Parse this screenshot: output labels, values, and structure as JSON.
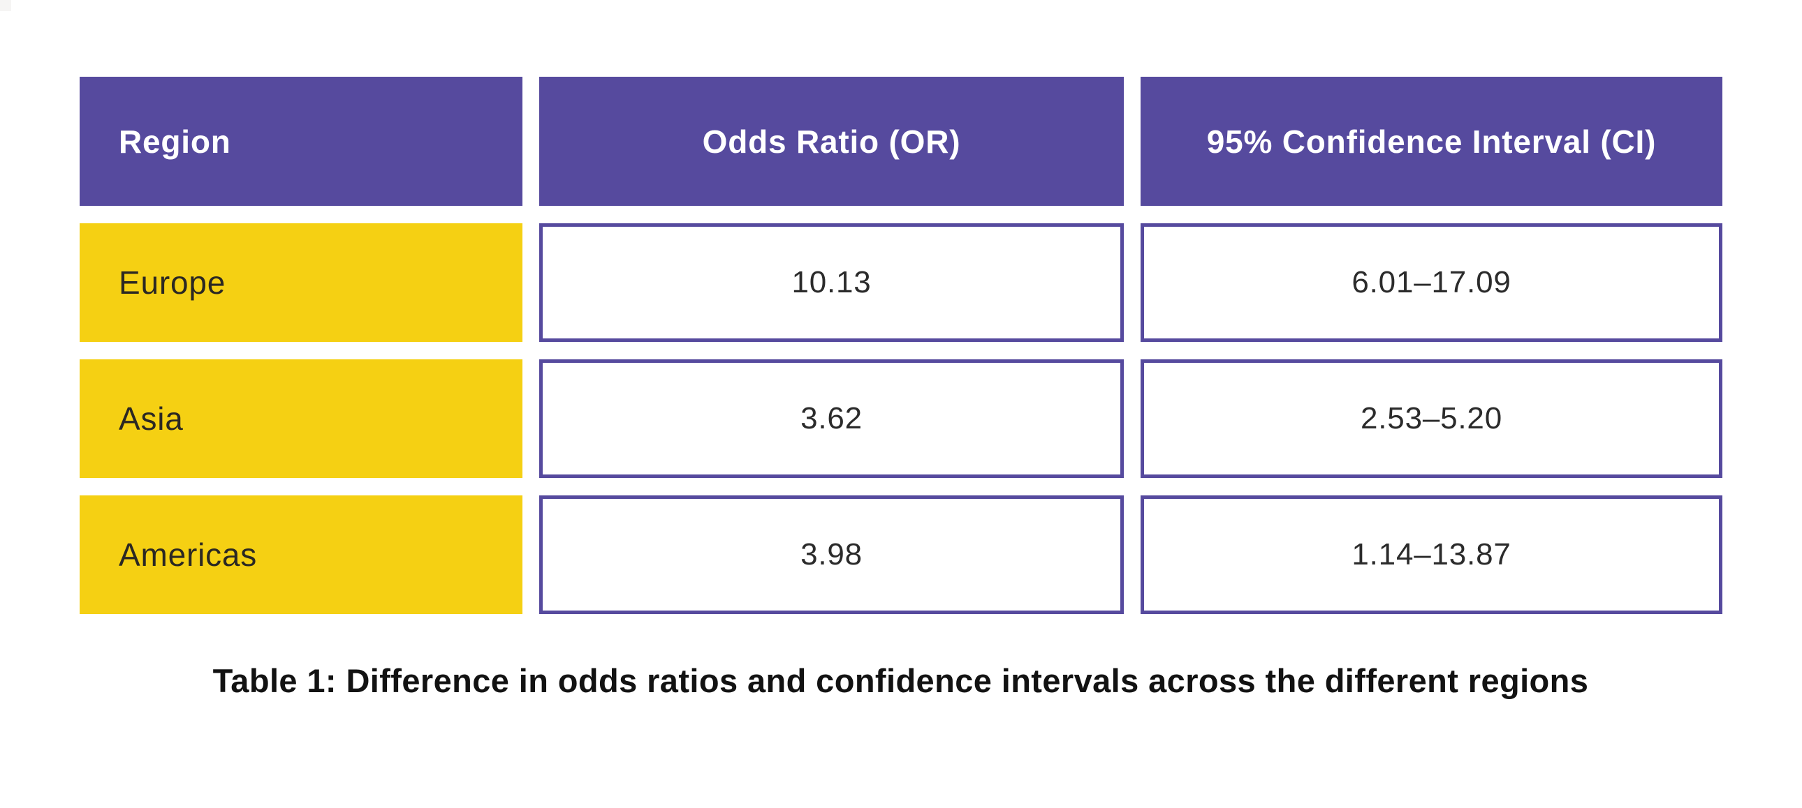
{
  "colors": {
    "purple": "#564A9E",
    "yellow": "#F5D013",
    "ink": "#2B2823",
    "caption-ink": "#121212"
  },
  "table": {
    "columns": [
      "Region",
      "Odds Ratio (OR)",
      "95% Confidence Interval (CI)"
    ],
    "rows": [
      {
        "region": "Europe",
        "or": "10.13",
        "ci": "6.01–17.09"
      },
      {
        "region": "Asia",
        "or": "3.62",
        "ci": "2.53–5.20"
      },
      {
        "region": "Americas",
        "or": "3.98",
        "ci": "1.14–13.87"
      }
    ]
  },
  "caption": "Table 1: Difference in odds ratios and confidence intervals across the different regions"
}
